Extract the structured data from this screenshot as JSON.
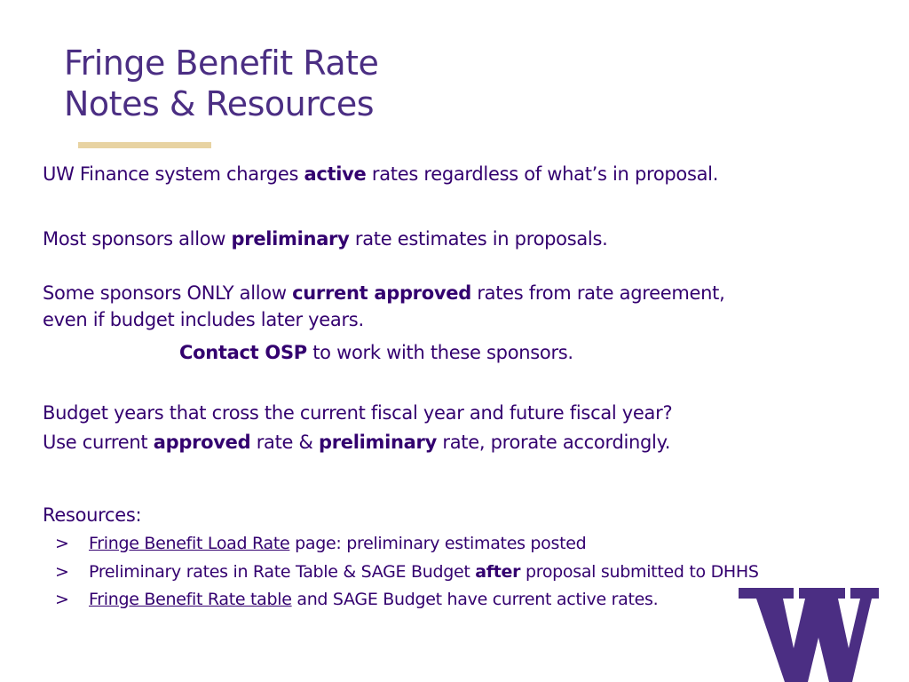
{
  "title": {
    "line1": "Fringe Benefit Rate",
    "line2": "Notes & Resources"
  },
  "p1": {
    "a": "UW Finance system charges ",
    "b": "active",
    "c": " rates regardless of what’s in proposal."
  },
  "p2": {
    "a": "Most sponsors allow ",
    "b": "preliminary",
    "c": " rate estimates in proposals."
  },
  "p3": {
    "line1a": "Some sponsors ONLY allow ",
    "line1b": "current approved",
    "line1c": " rates from rate agreement,",
    "line2": "even if budget includes later years.",
    "line3b": "Contact OSP",
    "line3c": " to work with these sponsors."
  },
  "p4": {
    "line1": "Budget years that cross the current fiscal year and future fiscal year?",
    "line2a": "Use current ",
    "line2b": "approved",
    "line2c": " rate & ",
    "line2d": "preliminary",
    "line2e": " rate, prorate accordingly."
  },
  "resources": {
    "heading": "Resources:",
    "bullet": ">",
    "item1": {
      "link": "Fringe Benefit Load Rate",
      "rest": " page: preliminary estimates posted"
    },
    "item2": {
      "a": "Preliminary rates in Rate Table & SAGE Budget ",
      "b": "after",
      "c": " proposal submitted to DHHS"
    },
    "item3": {
      "link": "Fringe Benefit Rate table",
      "rest": " and SAGE Budget have current active rates."
    }
  },
  "colors": {
    "purple": "#4b2e83",
    "text": "#33006f",
    "gold": "#e8d3a2"
  },
  "logo": {
    "icon": "uw-w-logo-icon"
  }
}
